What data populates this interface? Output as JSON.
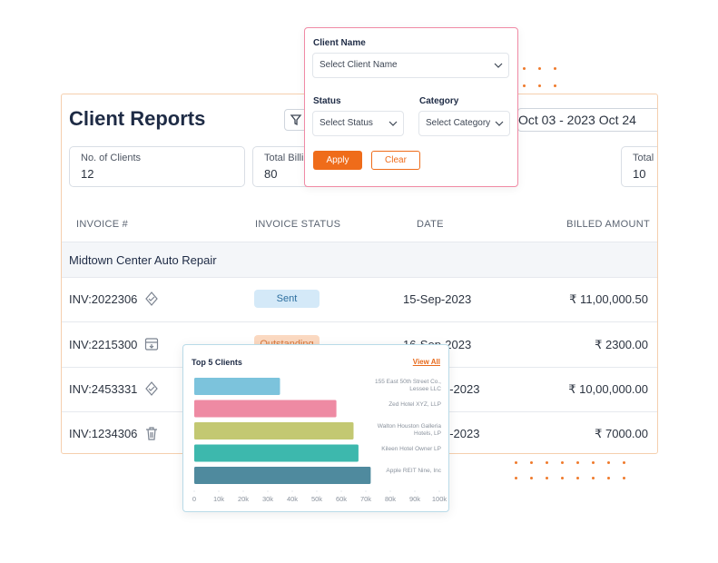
{
  "report": {
    "title": "Client Reports",
    "date_range": "Oct 03 - 2023 Oct 24",
    "stats": [
      {
        "label": "No. of Clients",
        "value": "12"
      },
      {
        "label": "Total Billi",
        "value": "80"
      },
      {
        "label": "Total",
        "value": "10"
      }
    ],
    "columns": [
      "INVOICE #",
      "INVOICE STATUS",
      "DATE",
      "BILLED AMOUNT"
    ],
    "group": "Midtown Center Auto Repair",
    "rows": [
      {
        "invoice": "INV:2022306",
        "status": "Sent",
        "date": "15-Sep-2023",
        "amount": "₹ 11,00,000.50"
      },
      {
        "invoice": "INV:2215300",
        "status": "Outstanding",
        "date": "16-Sep-2023",
        "amount": "₹ 2300.00"
      },
      {
        "invoice": "INV:2453331",
        "date": "p-2023",
        "amount": "₹ 10,00,000.00"
      },
      {
        "invoice": "INV:1234306",
        "date": "p-2023",
        "amount": "₹ 7000.00"
      }
    ]
  },
  "filter": {
    "client_label": "Client Name",
    "client_placeholder": "Select Client Name",
    "status_label": "Status",
    "status_placeholder": "Select Status",
    "category_label": "Category",
    "category_placeholder": "Select Category",
    "apply": "Apply",
    "clear": "Clear"
  },
  "chart_data": {
    "type": "bar",
    "orientation": "horizontal",
    "title": "Top 5 Clients",
    "link": "View All",
    "categories": [
      "155 East 50th Street Co., Lessee LLC",
      "Zed Hotel XYZ, LLP",
      "Walton Houston Galleria Hotels, LP",
      "Kileen Hotel Owner LP",
      "Apple REIT Nine, Inc"
    ],
    "values": [
      35000,
      58000,
      65000,
      67000,
      72000
    ],
    "colors": [
      "#7cc3dc",
      "#ee8aa3",
      "#c3c872",
      "#3db8ad",
      "#4f8a9e"
    ],
    "xlim": [
      0,
      100000
    ],
    "xticks": [
      0,
      {
        "value": 10000,
        "label": "10k"
      },
      {
        "value": 20000,
        "label": "20k"
      },
      {
        "value": 30000,
        "label": "30k"
      },
      {
        "value": 40000,
        "label": "40k"
      },
      {
        "value": 50000,
        "label": "50k"
      },
      {
        "value": 60000,
        "label": "60k"
      },
      {
        "value": 70000,
        "label": "70k"
      },
      {
        "value": 80000,
        "label": "80k"
      },
      {
        "value": 90000,
        "label": "90k"
      },
      {
        "value": 100000,
        "label": "100k"
      }
    ]
  }
}
